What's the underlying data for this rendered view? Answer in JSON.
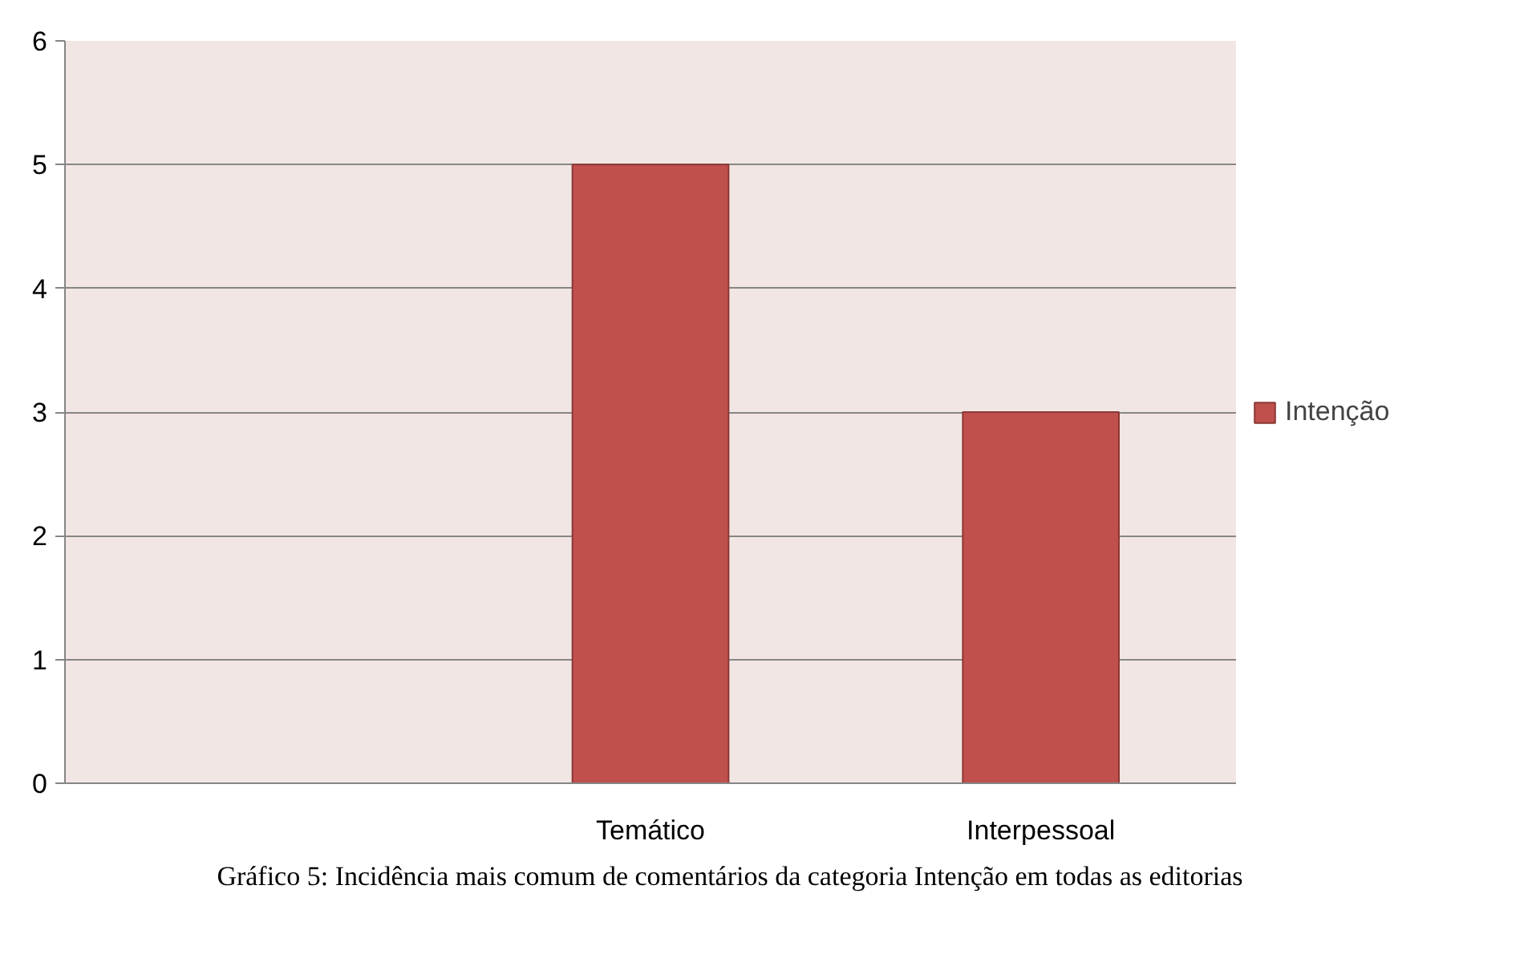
{
  "chart_data": {
    "type": "bar",
    "categories": [
      null,
      "Temático",
      "Interpessoal"
    ],
    "series": [
      {
        "name": "Intenção",
        "color": "#c0504d",
        "values": [
          null,
          5,
          3
        ]
      }
    ],
    "ylim": [
      0,
      6
    ],
    "yticks": [
      0,
      1,
      2,
      3,
      4,
      5,
      6
    ],
    "grid": "y",
    "legend": "right",
    "annotations": [
      "Gráfico 5: Incidência mais comum de comentários da categoria Intenção em todas as editorias"
    ]
  }
}
